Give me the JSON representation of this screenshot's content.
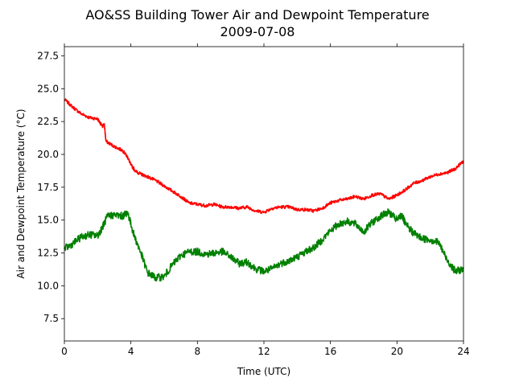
{
  "chart_data": {
    "type": "line",
    "title": "AO&SS Building Tower Air and Dewpoint Temperature",
    "subtitle": "2009-07-08",
    "xlabel": "Time (UTC)",
    "ylabel": "Air and Dewpoint Temperature (°C)",
    "xlim": [
      0,
      24
    ],
    "ylim": [
      5.8,
      28.2
    ],
    "x_ticks": [
      0,
      4,
      8,
      12,
      16,
      20,
      24
    ],
    "x_tick_labels": [
      "0",
      "4",
      "8",
      "12",
      "16",
      "20",
      "24"
    ],
    "y_ticks": [
      7.5,
      10.0,
      12.5,
      15.0,
      17.5,
      20.0,
      22.5,
      25.0,
      27.5
    ],
    "y_tick_labels": [
      "7.5",
      "10.0",
      "12.5",
      "15.0",
      "17.5",
      "20.0",
      "22.5",
      "25.0",
      "27.5"
    ],
    "grid": false,
    "series": [
      {
        "color": "#ff0000",
        "x": [
          0,
          0.5,
          1.0,
          1.5,
          2.0,
          2.3,
          2.4,
          2.5,
          3.0,
          3.5,
          3.8,
          4.0,
          4.3,
          4.6,
          5.0,
          5.5,
          6.0,
          6.5,
          7.0,
          7.5,
          8.0,
          8.5,
          9.0,
          9.5,
          10.0,
          10.5,
          11.0,
          11.5,
          12.0,
          12.5,
          13.0,
          13.5,
          14.0,
          14.5,
          15.0,
          15.5,
          16.0,
          16.5,
          17.0,
          17.5,
          18.0,
          18.5,
          19.0,
          19.5,
          20.0,
          20.5,
          21.0,
          21.5,
          22.0,
          22.5,
          23.0,
          23.5,
          24.0
        ],
        "values": [
          24.2,
          23.6,
          23.1,
          22.8,
          22.7,
          22.1,
          22.3,
          21.0,
          20.6,
          20.3,
          19.8,
          19.2,
          18.7,
          18.5,
          18.3,
          18.0,
          17.6,
          17.2,
          16.8,
          16.3,
          16.2,
          16.1,
          16.2,
          16.0,
          16.0,
          15.9,
          16.0,
          15.7,
          15.6,
          15.9,
          16.0,
          16.0,
          15.8,
          15.8,
          15.7,
          15.9,
          16.3,
          16.5,
          16.6,
          16.8,
          16.6,
          16.9,
          17.0,
          16.6,
          16.9,
          17.3,
          17.8,
          18.0,
          18.3,
          18.5,
          18.6,
          18.9,
          19.5
        ]
      },
      {
        "color": "#008000",
        "x": [
          0,
          0.5,
          1.0,
          1.5,
          2.0,
          2.3,
          2.6,
          3.0,
          3.5,
          3.8,
          4.2,
          4.6,
          5.0,
          5.5,
          6.0,
          6.5,
          7.0,
          7.5,
          8.0,
          8.5,
          9.0,
          9.5,
          10.0,
          10.5,
          11.0,
          11.5,
          12.0,
          12.5,
          13.0,
          13.5,
          14.0,
          14.5,
          15.0,
          15.5,
          16.0,
          16.5,
          17.0,
          17.5,
          18.0,
          18.5,
          19.0,
          19.5,
          20.0,
          20.3,
          20.5,
          21.0,
          21.5,
          22.0,
          22.5,
          23.0,
          23.5,
          24.0
        ],
        "values": [
          12.8,
          13.2,
          13.7,
          13.9,
          13.8,
          14.5,
          15.3,
          15.4,
          15.3,
          15.6,
          13.8,
          12.5,
          11.0,
          10.6,
          10.7,
          11.6,
          12.3,
          12.6,
          12.6,
          12.4,
          12.5,
          12.6,
          12.2,
          11.7,
          11.8,
          11.3,
          11.1,
          11.3,
          11.7,
          11.9,
          12.2,
          12.6,
          12.9,
          13.5,
          14.2,
          14.7,
          14.9,
          14.7,
          14.1,
          14.8,
          15.3,
          15.6,
          15.0,
          15.4,
          14.7,
          14.0,
          13.6,
          13.5,
          13.3,
          12.0,
          11.1,
          11.3
        ]
      }
    ]
  }
}
